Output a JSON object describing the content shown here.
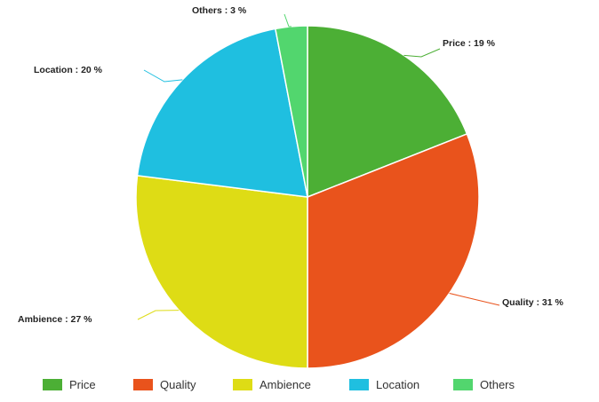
{
  "chart_data": {
    "type": "pie",
    "categories": [
      "Price",
      "Quality",
      "Ambience",
      "Location",
      "Others"
    ],
    "values": [
      19,
      31,
      27,
      20,
      3
    ],
    "unit": "%",
    "colors": [
      "#4caf35",
      "#e9531c",
      "#dedc15",
      "#1fbfe0",
      "#52d66e"
    ],
    "slice_labels": [
      "Price : 19 %",
      "Quality : 31 %",
      "Ambience : 27 %",
      "Location : 20 %",
      "Others : 3 %"
    ],
    "legend": {
      "placement": "bottom",
      "items": [
        "Price",
        "Quality",
        "Ambience",
        "Location",
        "Others"
      ]
    },
    "start_angle": "12 o'clock",
    "direction": "clockwise"
  }
}
